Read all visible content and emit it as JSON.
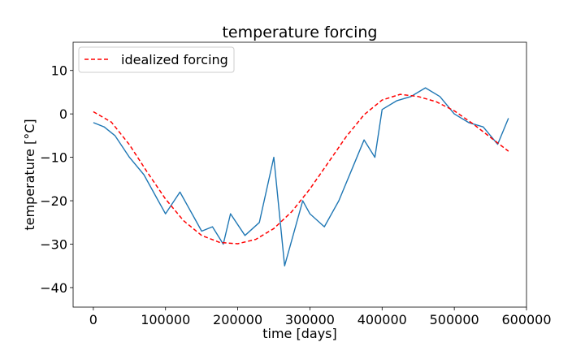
{
  "chart_data": {
    "type": "line",
    "title": "temperature forcing",
    "xlabel": "time [days]",
    "ylabel": "temperature [°C]",
    "xlim": [
      -28000,
      600000
    ],
    "ylim": [
      -44.5,
      16.5
    ],
    "xticks": [
      0,
      100000,
      200000,
      300000,
      400000,
      500000,
      600000
    ],
    "xtick_labels": [
      "0",
      "100000",
      "200000",
      "300000",
      "400000",
      "500000",
      "600000"
    ],
    "yticks": [
      10,
      0,
      -10,
      -20,
      -30,
      -40
    ],
    "ytick_labels": [
      "10",
      "0",
      "−10",
      "−20",
      "−30",
      "−40"
    ],
    "grid": false,
    "legend": {
      "placement": "top-left",
      "entries": [
        "idealized forcing"
      ]
    },
    "series": [
      {
        "style": "solid",
        "color": "#1f77b4",
        "x": [
          0,
          15000,
          30000,
          50000,
          70000,
          90000,
          100000,
          120000,
          140000,
          150000,
          165000,
          180000,
          190000,
          210000,
          230000,
          250000,
          265000,
          280000,
          290000,
          300000,
          320000,
          340000,
          360000,
          375000,
          390000,
          400000,
          420000,
          440000,
          460000,
          480000,
          500000,
          520000,
          540000,
          560000,
          575000
        ],
        "y": [
          -2,
          -3,
          -5,
          -10,
          -14,
          -20,
          -23,
          -18,
          -24,
          -27,
          -26,
          -30,
          -23,
          -28,
          -25,
          -10,
          -35,
          -26,
          -20,
          -23,
          -26,
          -20,
          -12,
          -6,
          -10,
          1,
          3,
          4,
          6,
          4,
          0,
          -2,
          -3,
          -7,
          -1
        ]
      },
      {
        "name": "idealized forcing",
        "style": "dashed",
        "color": "#ff0000",
        "x": [
          0,
          25000,
          50000,
          75000,
          100000,
          125000,
          150000,
          175000,
          200000,
          225000,
          250000,
          275000,
          300000,
          325000,
          350000,
          375000,
          400000,
          425000,
          450000,
          475000,
          500000,
          525000,
          550000,
          575000
        ],
        "y": [
          0.5,
          -1.9,
          -7.1,
          -13.5,
          -19.6,
          -24.6,
          -28.0,
          -29.6,
          -29.9,
          -28.9,
          -26.4,
          -22.5,
          -17.3,
          -11.3,
          -5.3,
          -0.2,
          3.2,
          4.5,
          4.0,
          2.8,
          0.7,
          -2.2,
          -5.4,
          -8.6
        ]
      }
    ]
  }
}
